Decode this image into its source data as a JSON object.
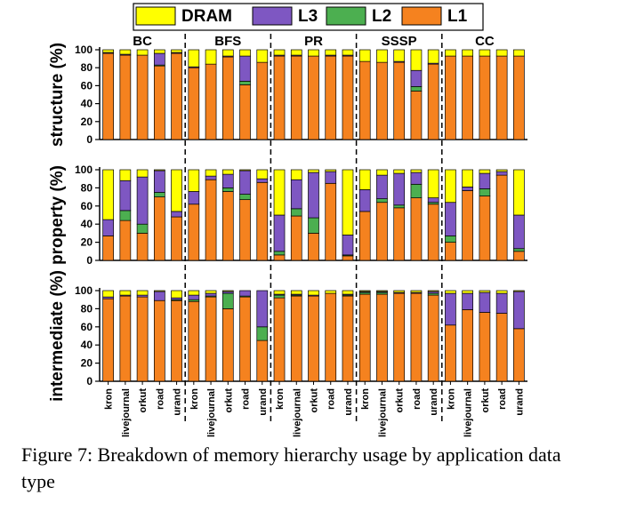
{
  "caption": "Figure 7: Breakdown of memory hierarchy usage by application data type",
  "colors": {
    "L1": "#f5821f",
    "L2": "#4caf50",
    "L3": "#7e57c2",
    "DRAM": "#ffff00"
  },
  "chart_data": {
    "type": "bar",
    "stacked": true,
    "legend": [
      "DRAM",
      "L3",
      "L2",
      "L1"
    ],
    "legend_position": "top",
    "apps": [
      "BC",
      "BFS",
      "PR",
      "SSSP",
      "CC"
    ],
    "inputs": [
      "kron",
      "livejournal",
      "orkut",
      "road",
      "urand"
    ],
    "yticks": [
      0,
      20,
      40,
      60,
      80,
      100
    ],
    "ylim": [
      0,
      100
    ],
    "panels": [
      {
        "ylabel": "structure (%)",
        "groups": [
          {
            "app": "BC",
            "bars": [
              {
                "L1": 96,
                "L2": 0,
                "L3": 1,
                "DRAM": 3
              },
              {
                "L1": 94,
                "L2": 0,
                "L3": 1,
                "DRAM": 5
              },
              {
                "L1": 94,
                "L2": 0,
                "L3": 0,
                "DRAM": 6
              },
              {
                "L1": 82,
                "L2": 1,
                "L3": 13,
                "DRAM": 4
              },
              {
                "L1": 96,
                "L2": 0,
                "L3": 1,
                "DRAM": 3
              }
            ]
          },
          {
            "app": "BFS",
            "bars": [
              {
                "L1": 80,
                "L2": 0,
                "L3": 1,
                "DRAM": 19
              },
              {
                "L1": 84,
                "L2": 0,
                "L3": 0,
                "DRAM": 16
              },
              {
                "L1": 92,
                "L2": 0,
                "L3": 1,
                "DRAM": 7
              },
              {
                "L1": 61,
                "L2": 4,
                "L3": 28,
                "DRAM": 7
              },
              {
                "L1": 86,
                "L2": 0,
                "L3": 0,
                "DRAM": 14
              }
            ]
          },
          {
            "app": "PR",
            "bars": [
              {
                "L1": 93,
                "L2": 0,
                "L3": 1,
                "DRAM": 6
              },
              {
                "L1": 93,
                "L2": 0,
                "L3": 1,
                "DRAM": 6
              },
              {
                "L1": 93,
                "L2": 0,
                "L3": 0,
                "DRAM": 7
              },
              {
                "L1": 93,
                "L2": 0,
                "L3": 1,
                "DRAM": 6
              },
              {
                "L1": 93,
                "L2": 0,
                "L3": 1,
                "DRAM": 6
              }
            ]
          },
          {
            "app": "SSSP",
            "bars": [
              {
                "L1": 87,
                "L2": 0,
                "L3": 0,
                "DRAM": 13
              },
              {
                "L1": 86,
                "L2": 0,
                "L3": 0,
                "DRAM": 14
              },
              {
                "L1": 86,
                "L2": 0,
                "L3": 1,
                "DRAM": 13
              },
              {
                "L1": 54,
                "L2": 5,
                "L3": 18,
                "DRAM": 23
              },
              {
                "L1": 84,
                "L2": 0,
                "L3": 1,
                "DRAM": 15
              }
            ]
          },
          {
            "app": "CC",
            "bars": [
              {
                "L1": 93,
                "L2": 0,
                "L3": 0,
                "DRAM": 7
              },
              {
                "L1": 93,
                "L2": 0,
                "L3": 0,
                "DRAM": 7
              },
              {
                "L1": 93,
                "L2": 0,
                "L3": 0,
                "DRAM": 7
              },
              {
                "L1": 93,
                "L2": 0,
                "L3": 0,
                "DRAM": 7
              },
              {
                "L1": 93,
                "L2": 0,
                "L3": 0,
                "DRAM": 7
              }
            ]
          }
        ]
      },
      {
        "ylabel": "property (%)",
        "groups": [
          {
            "app": "BC",
            "bars": [
              {
                "L1": 27,
                "L2": 0,
                "L3": 18,
                "DRAM": 55
              },
              {
                "L1": 44,
                "L2": 11,
                "L3": 33,
                "DRAM": 12
              },
              {
                "L1": 30,
                "L2": 10,
                "L3": 52,
                "DRAM": 8
              },
              {
                "L1": 70,
                "L2": 5,
                "L3": 24,
                "DRAM": 1
              },
              {
                "L1": 48,
                "L2": 0,
                "L3": 6,
                "DRAM": 46
              }
            ]
          },
          {
            "app": "BFS",
            "bars": [
              {
                "L1": 62,
                "L2": 0,
                "L3": 14,
                "DRAM": 24
              },
              {
                "L1": 89,
                "L2": 0,
                "L3": 4,
                "DRAM": 7
              },
              {
                "L1": 76,
                "L2": 4,
                "L3": 15,
                "DRAM": 5
              },
              {
                "L1": 67,
                "L2": 6,
                "L3": 26,
                "DRAM": 1
              },
              {
                "L1": 86,
                "L2": 0,
                "L3": 4,
                "DRAM": 10
              }
            ]
          },
          {
            "app": "PR",
            "bars": [
              {
                "L1": 6,
                "L2": 4,
                "L3": 40,
                "DRAM": 50
              },
              {
                "L1": 49,
                "L2": 8,
                "L3": 32,
                "DRAM": 11
              },
              {
                "L1": 30,
                "L2": 17,
                "L3": 50,
                "DRAM": 3
              },
              {
                "L1": 85,
                "L2": 0,
                "L3": 13,
                "DRAM": 2
              },
              {
                "L1": 5,
                "L2": 1,
                "L3": 22,
                "DRAM": 72
              }
            ]
          },
          {
            "app": "SSSP",
            "bars": [
              {
                "L1": 54,
                "L2": 0,
                "L3": 24,
                "DRAM": 22
              },
              {
                "L1": 64,
                "L2": 4,
                "L3": 26,
                "DRAM": 6
              },
              {
                "L1": 58,
                "L2": 3,
                "L3": 35,
                "DRAM": 4
              },
              {
                "L1": 69,
                "L2": 15,
                "L3": 13,
                "DRAM": 3
              },
              {
                "L1": 62,
                "L2": 2,
                "L3": 5,
                "DRAM": 31
              }
            ]
          },
          {
            "app": "CC",
            "bars": [
              {
                "L1": 20,
                "L2": 7,
                "L3": 37,
                "DRAM": 36
              },
              {
                "L1": 77,
                "L2": 0,
                "L3": 4,
                "DRAM": 19
              },
              {
                "L1": 71,
                "L2": 8,
                "L3": 17,
                "DRAM": 4
              },
              {
                "L1": 94,
                "L2": 0,
                "L3": 4,
                "DRAM": 2
              },
              {
                "L1": 10,
                "L2": 3,
                "L3": 37,
                "DRAM": 50
              }
            ]
          }
        ]
      },
      {
        "ylabel": "intermediate (%)",
        "groups": [
          {
            "app": "BC",
            "bars": [
              {
                "L1": 91,
                "L2": 0,
                "L3": 2,
                "DRAM": 7
              },
              {
                "L1": 94,
                "L2": 0,
                "L3": 1,
                "DRAM": 5
              },
              {
                "L1": 93,
                "L2": 0,
                "L3": 2,
                "DRAM": 5
              },
              {
                "L1": 89,
                "L2": 0,
                "L3": 10,
                "DRAM": 1
              },
              {
                "L1": 89,
                "L2": 1,
                "L3": 2,
                "DRAM": 8
              }
            ]
          },
          {
            "app": "BFS",
            "bars": [
              {
                "L1": 88,
                "L2": 2,
                "L3": 5,
                "DRAM": 5
              },
              {
                "L1": 93,
                "L2": 1,
                "L3": 3,
                "DRAM": 3
              },
              {
                "L1": 80,
                "L2": 17,
                "L3": 2,
                "DRAM": 1
              },
              {
                "L1": 93,
                "L2": 1,
                "L3": 6,
                "DRAM": 0
              },
              {
                "L1": 45,
                "L2": 15,
                "L3": 40,
                "DRAM": 0
              }
            ]
          },
          {
            "app": "PR",
            "bars": [
              {
                "L1": 92,
                "L2": 3,
                "L3": 1,
                "DRAM": 4
              },
              {
                "L1": 94,
                "L2": 1,
                "L3": 1,
                "DRAM": 4
              },
              {
                "L1": 94,
                "L2": 0,
                "L3": 1,
                "DRAM": 5
              },
              {
                "L1": 97,
                "L2": 0,
                "L3": 0,
                "DRAM": 3
              },
              {
                "L1": 94,
                "L2": 1,
                "L3": 1,
                "DRAM": 4
              }
            ]
          },
          {
            "app": "SSSP",
            "bars": [
              {
                "L1": 96,
                "L2": 2,
                "L3": 1,
                "DRAM": 1
              },
              {
                "L1": 96,
                "L2": 2,
                "L3": 1,
                "DRAM": 1
              },
              {
                "L1": 97,
                "L2": 0,
                "L3": 1,
                "DRAM": 2
              },
              {
                "L1": 97,
                "L2": 0,
                "L3": 1,
                "DRAM": 2
              },
              {
                "L1": 95,
                "L2": 2,
                "L3": 2,
                "DRAM": 1
              }
            ]
          },
          {
            "app": "CC",
            "bars": [
              {
                "L1": 62,
                "L2": 0,
                "L3": 35,
                "DRAM": 3
              },
              {
                "L1": 79,
                "L2": 0,
                "L3": 18,
                "DRAM": 3
              },
              {
                "L1": 76,
                "L2": 0,
                "L3": 22,
                "DRAM": 2
              },
              {
                "L1": 75,
                "L2": 0,
                "L3": 22,
                "DRAM": 3
              },
              {
                "L1": 58,
                "L2": 0,
                "L3": 41,
                "DRAM": 1
              }
            ]
          }
        ]
      }
    ]
  }
}
